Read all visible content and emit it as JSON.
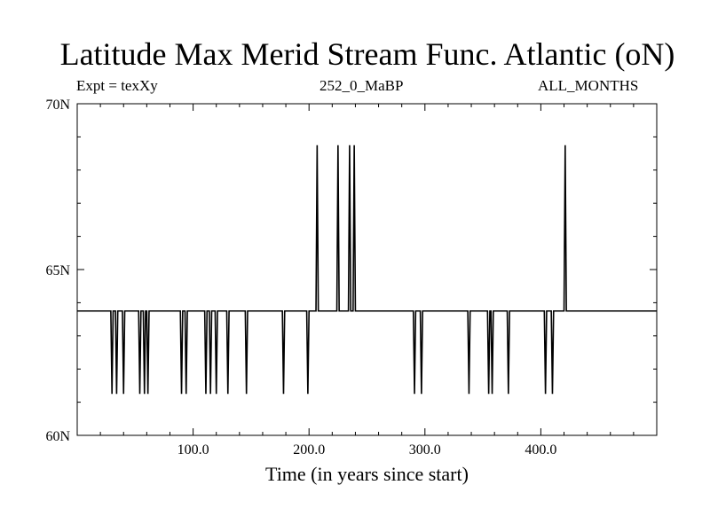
{
  "chart_data": {
    "type": "line",
    "title": "Latitude Max Merid Stream Func. Atlantic (oN)",
    "subtitle_left": "Expt = texXy",
    "subtitle_center": "252_0_MaBP",
    "subtitle_right": "ALL_MONTHS",
    "xlabel": "Time (in years since start)",
    "ylabel": "",
    "xlim": [
      0,
      500
    ],
    "ylim": [
      60,
      70
    ],
    "xticks": [
      "100.0",
      "200.0",
      "300.0",
      "400.0"
    ],
    "yticks": [
      "60N",
      "65N",
      "70N"
    ],
    "grid": false,
    "baseline": 63.75,
    "low_value": 61.25,
    "high_value": 68.75,
    "low_years": [
      29,
      33,
      39,
      53,
      57,
      60,
      89,
      93,
      110,
      114,
      119,
      129,
      145,
      177,
      198,
      290,
      296,
      337,
      354,
      357,
      371,
      403,
      409
    ],
    "high_years": [
      206,
      224,
      234,
      238,
      420
    ],
    "series": [
      {
        "name": "",
        "color": "#000000"
      }
    ]
  }
}
